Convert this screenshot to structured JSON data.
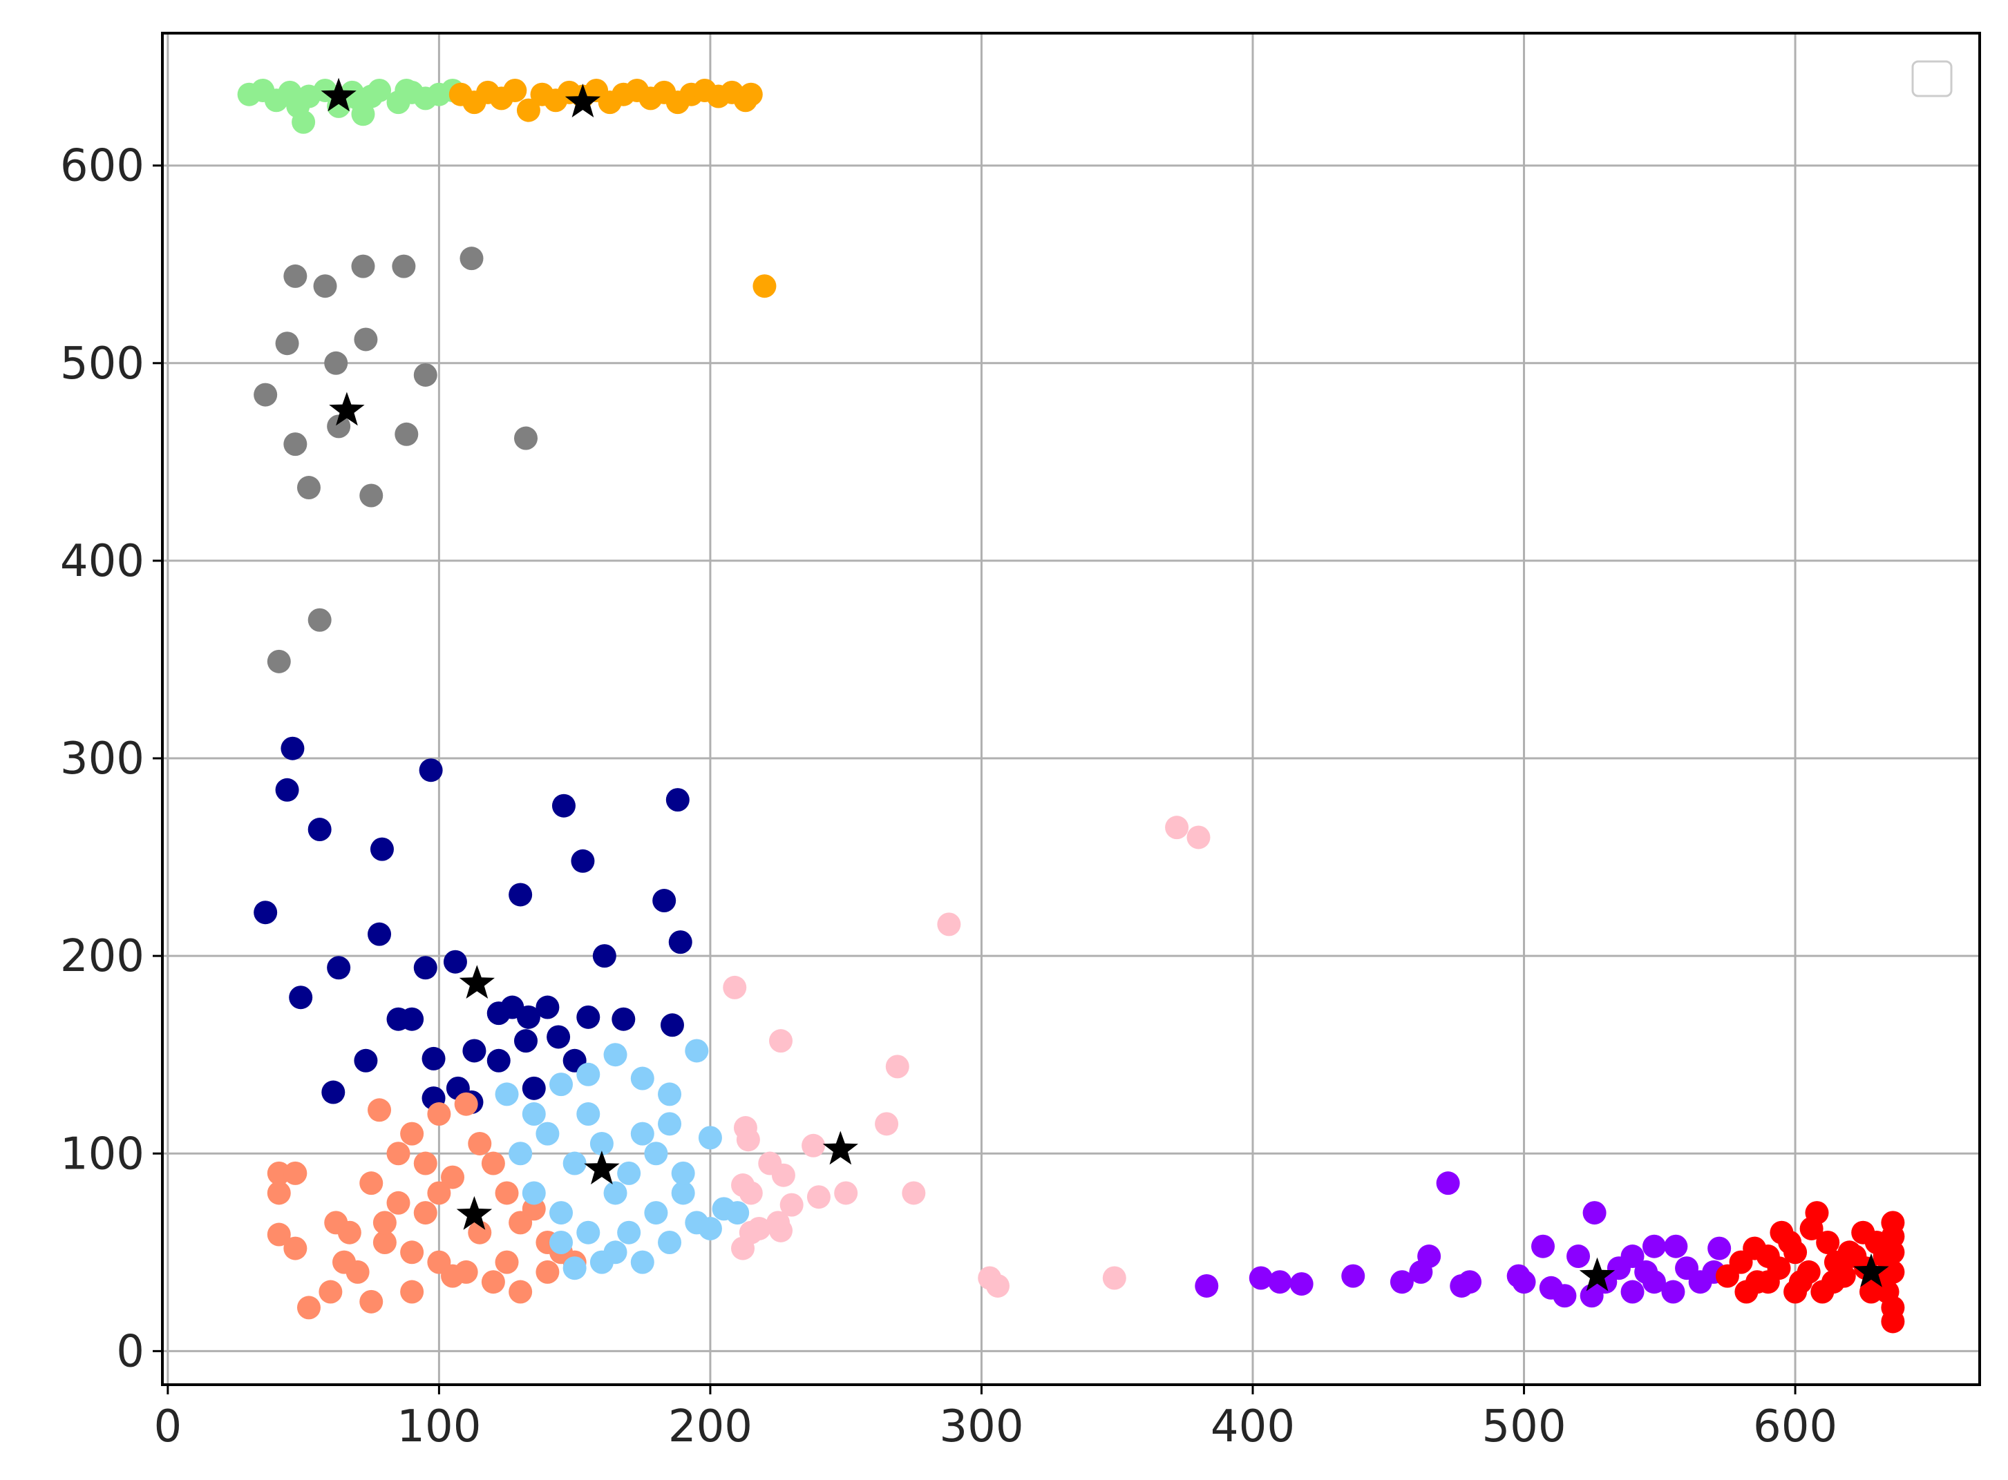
{
  "chart_data": {
    "type": "scatter",
    "title": "",
    "xlabel": "",
    "ylabel": "",
    "xlim": [
      -2,
      668
    ],
    "ylim": [
      -17,
      667
    ],
    "xticks": [
      0,
      100,
      200,
      300,
      400,
      500,
      600
    ],
    "yticks": [
      0,
      100,
      200,
      300,
      400,
      500,
      600
    ],
    "grid": true,
    "legend": {
      "placement": "upper right",
      "entries": []
    },
    "series": [
      {
        "color": "#90ee90",
        "points": [
          [
            30,
            636
          ],
          [
            35,
            638
          ],
          [
            40,
            633
          ],
          [
            45,
            637
          ],
          [
            50,
            622
          ],
          [
            52,
            635
          ],
          [
            58,
            638
          ],
          [
            63,
            630
          ],
          [
            68,
            637
          ],
          [
            72,
            626
          ],
          [
            75,
            635
          ],
          [
            78,
            638
          ],
          [
            85,
            632
          ],
          [
            90,
            637
          ],
          [
            95,
            634
          ],
          [
            100,
            636
          ],
          [
            105,
            638
          ],
          [
            48,
            630
          ],
          [
            70,
            634
          ],
          [
            88,
            638
          ]
        ],
        "centroid": [
          63,
          635
        ]
      },
      {
        "color": "#ffa500",
        "points": [
          [
            108,
            636
          ],
          [
            113,
            632
          ],
          [
            118,
            637
          ],
          [
            123,
            634
          ],
          [
            128,
            638
          ],
          [
            133,
            628
          ],
          [
            138,
            636
          ],
          [
            143,
            633
          ],
          [
            148,
            637
          ],
          [
            153,
            635
          ],
          [
            158,
            638
          ],
          [
            163,
            632
          ],
          [
            168,
            636
          ],
          [
            173,
            638
          ],
          [
            178,
            634
          ],
          [
            183,
            637
          ],
          [
            188,
            632
          ],
          [
            193,
            636
          ],
          [
            198,
            638
          ],
          [
            203,
            635
          ],
          [
            208,
            637
          ],
          [
            213,
            633
          ],
          [
            215,
            636
          ],
          [
            220,
            539
          ]
        ],
        "centroid": [
          153,
          632
        ]
      },
      {
        "color": "#808080",
        "points": [
          [
            47,
            544
          ],
          [
            58,
            539
          ],
          [
            72,
            549
          ],
          [
            87,
            549
          ],
          [
            112,
            553
          ],
          [
            44,
            510
          ],
          [
            62,
            500
          ],
          [
            73,
            512
          ],
          [
            95,
            494
          ],
          [
            36,
            484
          ],
          [
            47,
            459
          ],
          [
            63,
            468
          ],
          [
            88,
            464
          ],
          [
            132,
            462
          ],
          [
            52,
            437
          ],
          [
            75,
            433
          ],
          [
            56,
            370
          ],
          [
            41,
            349
          ]
        ],
        "centroid": [
          66,
          476
        ]
      },
      {
        "color": "#00008b",
        "points": [
          [
            46,
            305
          ],
          [
            44,
            284
          ],
          [
            97,
            294
          ],
          [
            146,
            276
          ],
          [
            188,
            279
          ],
          [
            56,
            264
          ],
          [
            79,
            254
          ],
          [
            153,
            248
          ],
          [
            36,
            222
          ],
          [
            130,
            231
          ],
          [
            183,
            228
          ],
          [
            78,
            211
          ],
          [
            189,
            207
          ],
          [
            63,
            194
          ],
          [
            95,
            194
          ],
          [
            106,
            197
          ],
          [
            161,
            200
          ],
          [
            49,
            179
          ],
          [
            85,
            168
          ],
          [
            90,
            168
          ],
          [
            122,
            171
          ],
          [
            127,
            174
          ],
          [
            133,
            169
          ],
          [
            140,
            174
          ],
          [
            155,
            169
          ],
          [
            168,
            168
          ],
          [
            186,
            165
          ],
          [
            98,
            148
          ],
          [
            113,
            152
          ],
          [
            122,
            147
          ],
          [
            132,
            157
          ],
          [
            144,
            159
          ],
          [
            150,
            147
          ],
          [
            73,
            147
          ],
          [
            61,
            131
          ],
          [
            98,
            128
          ],
          [
            107,
            133
          ],
          [
            135,
            133
          ],
          [
            112,
            126
          ]
        ],
        "centroid": [
          114,
          186
        ]
      },
      {
        "color": "#ff8c69",
        "points": [
          [
            41,
            90
          ],
          [
            47,
            90
          ],
          [
            41,
            80
          ],
          [
            41,
            59
          ],
          [
            47,
            52
          ],
          [
            52,
            22
          ],
          [
            62,
            65
          ],
          [
            67,
            60
          ],
          [
            75,
            85
          ],
          [
            78,
            122
          ],
          [
            85,
            100
          ],
          [
            90,
            110
          ],
          [
            95,
            95
          ],
          [
            100,
            120
          ],
          [
            105,
            88
          ],
          [
            110,
            125
          ],
          [
            115,
            105
          ],
          [
            120,
            95
          ],
          [
            125,
            80
          ],
          [
            130,
            65
          ],
          [
            135,
            72
          ],
          [
            140,
            55
          ],
          [
            145,
            50
          ],
          [
            150,
            45
          ],
          [
            70,
            40
          ],
          [
            80,
            55
          ],
          [
            90,
            50
          ],
          [
            100,
            45
          ],
          [
            110,
            40
          ],
          [
            120,
            35
          ],
          [
            130,
            30
          ],
          [
            140,
            40
          ],
          [
            75,
            25
          ],
          [
            90,
            30
          ],
          [
            105,
            38
          ],
          [
            115,
            60
          ],
          [
            95,
            70
          ],
          [
            85,
            75
          ],
          [
            65,
            45
          ],
          [
            125,
            45
          ],
          [
            60,
            30
          ],
          [
            80,
            65
          ],
          [
            100,
            80
          ]
        ],
        "centroid": [
          113,
          69
        ]
      },
      {
        "color": "#87cefa",
        "points": [
          [
            125,
            130
          ],
          [
            135,
            120
          ],
          [
            145,
            135
          ],
          [
            155,
            140
          ],
          [
            165,
            150
          ],
          [
            175,
            138
          ],
          [
            185,
            130
          ],
          [
            195,
            152
          ],
          [
            130,
            100
          ],
          [
            140,
            110
          ],
          [
            150,
            95
          ],
          [
            160,
            105
          ],
          [
            170,
            90
          ],
          [
            180,
            100
          ],
          [
            190,
            80
          ],
          [
            200,
            108
          ],
          [
            205,
            72
          ],
          [
            210,
            70
          ],
          [
            135,
            80
          ],
          [
            145,
            70
          ],
          [
            155,
            60
          ],
          [
            165,
            50
          ],
          [
            175,
            45
          ],
          [
            185,
            55
          ],
          [
            195,
            65
          ],
          [
            200,
            62
          ],
          [
            150,
            42
          ],
          [
            160,
            45
          ],
          [
            170,
            60
          ],
          [
            180,
            70
          ],
          [
            190,
            90
          ],
          [
            155,
            120
          ],
          [
            165,
            80
          ],
          [
            175,
            110
          ],
          [
            185,
            115
          ],
          [
            145,
            55
          ]
        ],
        "centroid": [
          160,
          92
        ]
      },
      {
        "color": "#ffc0cb",
        "points": [
          [
            372,
            265
          ],
          [
            380,
            260
          ],
          [
            288,
            216
          ],
          [
            209,
            184
          ],
          [
            226,
            157
          ],
          [
            269,
            144
          ],
          [
            265,
            115
          ],
          [
            213,
            113
          ],
          [
            214,
            107
          ],
          [
            238,
            104
          ],
          [
            222,
            95
          ],
          [
            227,
            89
          ],
          [
            212,
            84
          ],
          [
            215,
            80
          ],
          [
            230,
            74
          ],
          [
            240,
            78
          ],
          [
            250,
            80
          ],
          [
            275,
            80
          ],
          [
            225,
            65
          ],
          [
            218,
            62
          ],
          [
            215,
            60
          ],
          [
            212,
            52
          ],
          [
            226,
            61
          ],
          [
            303,
            37
          ],
          [
            306,
            33
          ],
          [
            349,
            37
          ]
        ],
        "centroid": [
          248,
          102
        ]
      },
      {
        "color": "#8b00ff",
        "points": [
          [
            472,
            85
          ],
          [
            526,
            70
          ],
          [
            507,
            53
          ],
          [
            520,
            48
          ],
          [
            540,
            48
          ],
          [
            548,
            53
          ],
          [
            556,
            53
          ],
          [
            572,
            52
          ],
          [
            465,
            48
          ],
          [
            437,
            38
          ],
          [
            455,
            35
          ],
          [
            462,
            40
          ],
          [
            480,
            35
          ],
          [
            477,
            33
          ],
          [
            498,
            38
          ],
          [
            510,
            32
          ],
          [
            515,
            28
          ],
          [
            525,
            28
          ],
          [
            530,
            35
          ],
          [
            540,
            30
          ],
          [
            548,
            35
          ],
          [
            555,
            30
          ],
          [
            565,
            35
          ],
          [
            570,
            40
          ],
          [
            383,
            33
          ],
          [
            403,
            37
          ],
          [
            410,
            35
          ],
          [
            418,
            34
          ],
          [
            500,
            35
          ],
          [
            560,
            42
          ],
          [
            535,
            42
          ],
          [
            545,
            40
          ]
        ],
        "centroid": [
          527,
          38
        ]
      },
      {
        "color": "#ff0000",
        "points": [
          [
            575,
            38
          ],
          [
            580,
            45
          ],
          [
            585,
            52
          ],
          [
            590,
            35
          ],
          [
            595,
            60
          ],
          [
            600,
            50
          ],
          [
            605,
            40
          ],
          [
            608,
            70
          ],
          [
            612,
            55
          ],
          [
            615,
            45
          ],
          [
            620,
            50
          ],
          [
            625,
            60
          ],
          [
            630,
            35
          ],
          [
            633,
            48
          ],
          [
            636,
            65
          ],
          [
            636,
            22
          ],
          [
            636,
            15
          ],
          [
            586,
            35
          ],
          [
            594,
            42
          ],
          [
            602,
            35
          ],
          [
            610,
            30
          ],
          [
            618,
            38
          ],
          [
            626,
            42
          ],
          [
            634,
            30
          ],
          [
            598,
            55
          ],
          [
            606,
            62
          ],
          [
            614,
            35
          ],
          [
            622,
            48
          ],
          [
            630,
            55
          ],
          [
            590,
            48
          ],
          [
            582,
            30
          ],
          [
            600,
            30
          ],
          [
            628,
            30
          ],
          [
            636,
            40
          ],
          [
            636,
            50
          ],
          [
            636,
            58
          ]
        ],
        "centroid": [
          628,
          40
        ]
      }
    ]
  }
}
